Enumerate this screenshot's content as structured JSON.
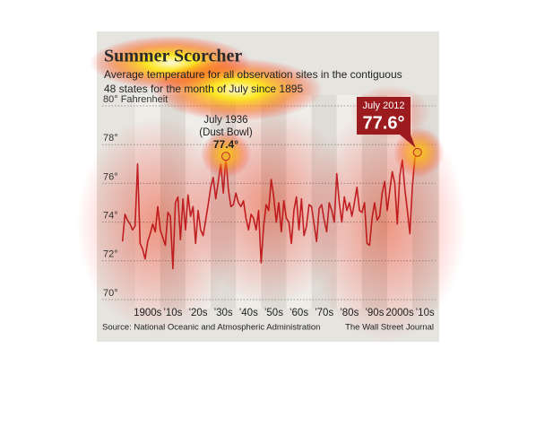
{
  "chart_data": {
    "type": "line",
    "title": "Summer Scorcher",
    "subtitle": [
      "Average temperature for all observation sites in the contiguous",
      "48 states for the month of July since 1895"
    ],
    "source": "Source: National Oceanic and Atmospheric Administration",
    "credit": "The Wall Street Journal",
    "x": [
      1895,
      1896,
      1897,
      1898,
      1899,
      1900,
      1901,
      1902,
      1903,
      1904,
      1905,
      1906,
      1907,
      1908,
      1909,
      1910,
      1911,
      1912,
      1913,
      1914,
      1915,
      1916,
      1917,
      1918,
      1919,
      1920,
      1921,
      1922,
      1923,
      1924,
      1925,
      1926,
      1927,
      1928,
      1929,
      1930,
      1931,
      1932,
      1933,
      1934,
      1935,
      1936,
      1937,
      1938,
      1939,
      1940,
      1941,
      1942,
      1943,
      1944,
      1945,
      1946,
      1947,
      1948,
      1949,
      1950,
      1951,
      1952,
      1953,
      1954,
      1955,
      1956,
      1957,
      1958,
      1959,
      1960,
      1961,
      1962,
      1963,
      1964,
      1965,
      1966,
      1967,
      1968,
      1969,
      1970,
      1971,
      1972,
      1973,
      1974,
      1975,
      1976,
      1977,
      1978,
      1979,
      1980,
      1981,
      1982,
      1983,
      1984,
      1985,
      1986,
      1987,
      1988,
      1989,
      1990,
      1991,
      1992,
      1993,
      1994,
      1995,
      1996,
      1997,
      1998,
      1999,
      2000,
      2001,
      2002,
      2003,
      2004,
      2005,
      2006,
      2007,
      2008,
      2009,
      2010,
      2011,
      2012
    ],
    "series": [
      {
        "color": "#c0272d",
        "values": [
          73.0,
          74.4,
          74.1,
          73.9,
          73.6,
          73.8,
          77.0,
          72.9,
          72.6,
          72.1,
          73.0,
          73.4,
          73.9,
          73.5,
          74.8,
          73.6,
          73.2,
          72.8,
          74.5,
          74.3,
          71.6,
          75.0,
          75.3,
          73.1,
          75.2,
          73.6,
          75.4,
          74.3,
          74.8,
          72.9,
          74.6,
          73.6,
          73.3,
          74.1,
          74.9,
          75.8,
          76.3,
          75.2,
          76.1,
          77.0,
          75.5,
          77.4,
          75.7,
          74.8,
          74.9,
          75.5,
          75.0,
          74.8,
          75.1,
          74.2,
          73.6,
          74.4,
          74.2,
          73.6,
          74.6,
          71.9,
          73.8,
          74.9,
          74.6,
          76.2,
          75.3,
          74.0,
          75.0,
          73.5,
          75.1,
          74.2,
          74.0,
          72.9,
          74.6,
          75.3,
          73.6,
          75.2,
          73.3,
          73.8,
          74.9,
          74.8,
          73.9,
          73.0,
          74.7,
          74.9,
          74.1,
          73.5,
          75.0,
          74.6,
          74.0,
          76.5,
          75.0,
          74.0,
          75.3,
          74.6,
          75.0,
          74.3,
          75.0,
          75.8,
          74.6,
          74.5,
          75.0,
          72.9,
          72.8,
          74.2,
          75.0,
          74.1,
          74.3,
          75.5,
          76.1,
          74.6,
          75.6,
          76.6,
          76.0,
          73.9,
          76.4,
          77.2,
          75.7,
          74.6,
          73.4,
          75.9,
          77.3,
          77.6
        ]
      }
    ],
    "xlim": [
      1893,
      2016
    ],
    "ylim": [
      70,
      80
    ],
    "yticks": [
      {
        "value": 70,
        "label": "70°"
      },
      {
        "value": 72,
        "label": "72°"
      },
      {
        "value": 74,
        "label": "74°"
      },
      {
        "value": 76,
        "label": "76°"
      },
      {
        "value": 78,
        "label": "78°"
      },
      {
        "value": 80,
        "label": "80° Fahrenheit"
      }
    ],
    "xticks": [
      {
        "value": 1905,
        "label": "1900s"
      },
      {
        "value": 1915,
        "label": "’10s"
      },
      {
        "value": 1925,
        "label": "’20s"
      },
      {
        "value": 1935,
        "label": "’30s"
      },
      {
        "value": 1945,
        "label": "’40s"
      },
      {
        "value": 1955,
        "label": "’50s"
      },
      {
        "value": 1965,
        "label": "’60s"
      },
      {
        "value": 1975,
        "label": "’70s"
      },
      {
        "value": 1985,
        "label": "’80s"
      },
      {
        "value": 1995,
        "label": "’90s"
      },
      {
        "value": 2005,
        "label": "2000s"
      },
      {
        "value": 2015,
        "label": "’10s"
      }
    ],
    "grid": true,
    "annotations": [
      {
        "x": 1936,
        "label": "July 1936",
        "note": "(Dust Bowl)",
        "value_label": "77.4°",
        "style": "plain"
      },
      {
        "x": 2012,
        "label": "July 2012",
        "value_label": "77.6°",
        "style": "boxed"
      }
    ]
  }
}
